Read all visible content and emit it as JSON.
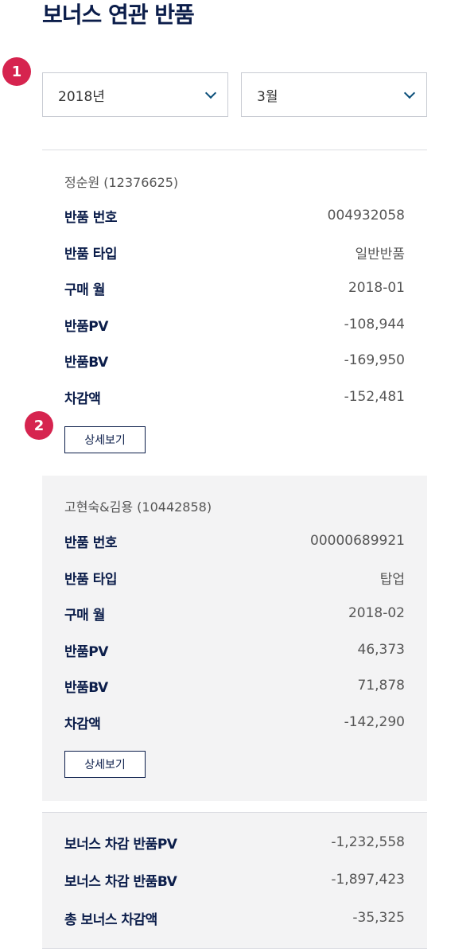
{
  "page": {
    "title": "보너스 연관 반품"
  },
  "markers": [
    "1",
    "2"
  ],
  "filters": {
    "year": {
      "selected": "2018년"
    },
    "month": {
      "selected": "3월"
    }
  },
  "returns": [
    {
      "name": "정순원 (12376625)",
      "rows": [
        {
          "label": "반품 번호",
          "value": "004932058"
        },
        {
          "label": "반품 타입",
          "value": "일반반품"
        },
        {
          "label": "구매 월",
          "value": "2018-01"
        },
        {
          "label": "반품PV",
          "value": "-108,944"
        },
        {
          "label": "반품BV",
          "value": "-169,950"
        },
        {
          "label": "차감액",
          "value": "-152,481"
        }
      ],
      "detail_label": "상세보기"
    },
    {
      "name": "고현숙&김용 (10442858)",
      "rows": [
        {
          "label": "반품 번호",
          "value": "00000689921"
        },
        {
          "label": "반품 타입",
          "value": "탑업"
        },
        {
          "label": "구매 월",
          "value": "2018-02"
        },
        {
          "label": "반품PV",
          "value": "46,373"
        },
        {
          "label": "반품BV",
          "value": "71,878"
        },
        {
          "label": "차감액",
          "value": "-142,290"
        }
      ],
      "detail_label": "상세보기"
    }
  ],
  "summary": [
    {
      "label": "보너스 차감 반품PV",
      "value": "-1,232,558"
    },
    {
      "label": "보너스 차감 반품BV",
      "value": "-1,897,423"
    },
    {
      "label": "총 보너스 차감액",
      "value": "-35,325"
    }
  ],
  "colors": {
    "accent": "#d6244f",
    "navy": "#0b1d4a",
    "chevron": "#0b4f7a"
  }
}
